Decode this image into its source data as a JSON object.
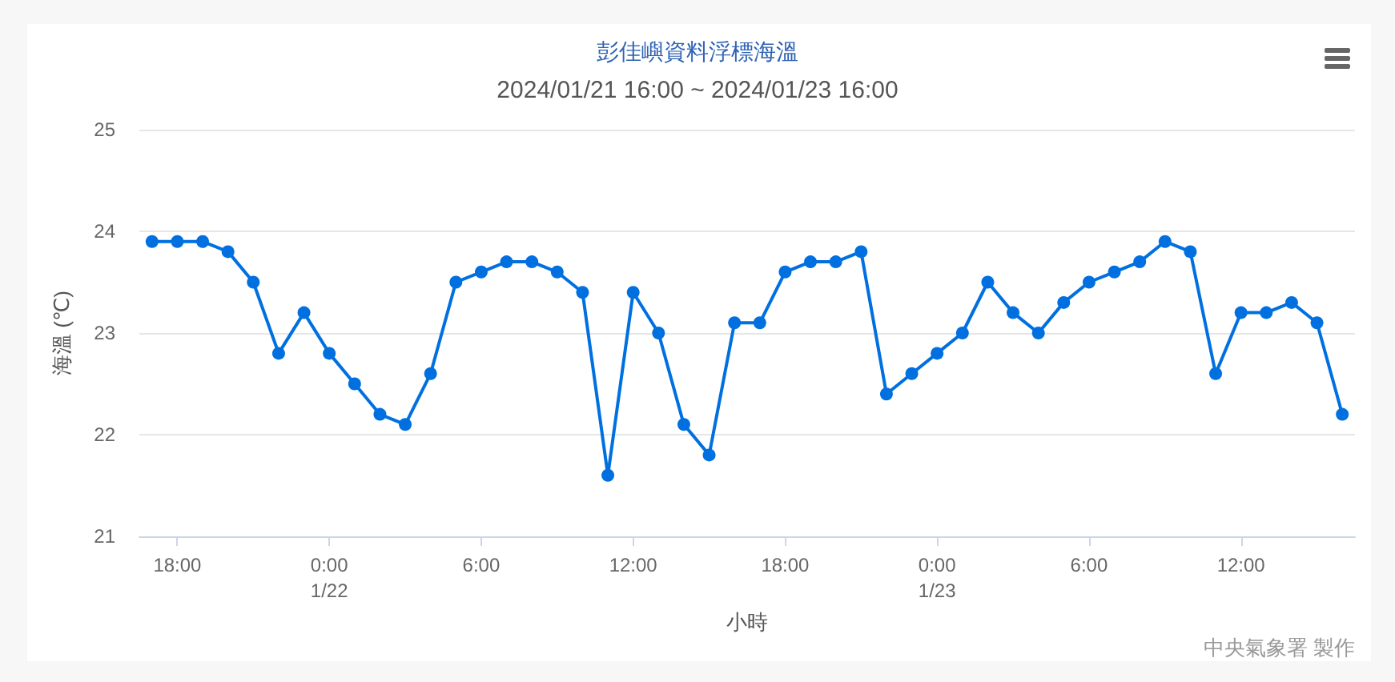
{
  "chart_data": {
    "type": "line",
    "title": "彭佳嶼資料浮標海溫",
    "subtitle": "2024/01/21 16:00 ~ 2024/01/23 16:00",
    "xlabel": "小時",
    "ylabel": "海溫 (℃)",
    "annotations": [
      "中央氣象署 製作"
    ],
    "x": [
      "2024-01-21T17:00",
      "2024-01-21T18:00",
      "2024-01-21T19:00",
      "2024-01-21T20:00",
      "2024-01-21T21:00",
      "2024-01-21T22:00",
      "2024-01-21T23:00",
      "2024-01-22T00:00",
      "2024-01-22T01:00",
      "2024-01-22T02:00",
      "2024-01-22T03:00",
      "2024-01-22T04:00",
      "2024-01-22T05:00",
      "2024-01-22T06:00",
      "2024-01-22T07:00",
      "2024-01-22T08:00",
      "2024-01-22T09:00",
      "2024-01-22T10:00",
      "2024-01-22T11:00",
      "2024-01-22T12:00",
      "2024-01-22T13:00",
      "2024-01-22T14:00",
      "2024-01-22T15:00",
      "2024-01-22T16:00",
      "2024-01-22T17:00",
      "2024-01-22T18:00",
      "2024-01-22T19:00",
      "2024-01-22T20:00",
      "2024-01-22T21:00",
      "2024-01-22T22:00",
      "2024-01-22T23:00",
      "2024-01-23T00:00",
      "2024-01-23T01:00",
      "2024-01-23T02:00",
      "2024-01-23T03:00",
      "2024-01-23T04:00",
      "2024-01-23T05:00",
      "2024-01-23T06:00",
      "2024-01-23T07:00",
      "2024-01-23T08:00",
      "2024-01-23T09:00",
      "2024-01-23T10:00",
      "2024-01-23T11:00",
      "2024-01-23T12:00",
      "2024-01-23T13:00",
      "2024-01-23T14:00",
      "2024-01-23T15:00",
      "2024-01-23T16:00"
    ],
    "series": [
      {
        "color": "#0070e0",
        "values": [
          23.9,
          23.9,
          23.9,
          23.8,
          23.5,
          22.8,
          23.2,
          22.8,
          22.5,
          22.2,
          22.1,
          22.6,
          23.5,
          23.6,
          23.7,
          23.7,
          23.6,
          23.4,
          21.6,
          23.4,
          23.0,
          22.1,
          21.8,
          23.1,
          23.1,
          23.6,
          23.7,
          23.7,
          23.8,
          22.4,
          22.6,
          22.8,
          23.0,
          23.5,
          23.2,
          23.0,
          23.3,
          23.5,
          23.6,
          23.7,
          23.9,
          23.8,
          22.6,
          23.2,
          23.2,
          23.3,
          23.1,
          22.2
        ]
      }
    ],
    "xlim": [
      "2024-01-21T16:30",
      "2024-01-23T16:30"
    ],
    "xticks": [
      {
        "value": "2024-01-21T18:00",
        "label": "18:00"
      },
      {
        "value": "2024-01-22T00:00",
        "label": "0:00\n1/22"
      },
      {
        "value": "2024-01-22T06:00",
        "label": "6:00"
      },
      {
        "value": "2024-01-22T12:00",
        "label": "12:00"
      },
      {
        "value": "2024-01-22T18:00",
        "label": "18:00"
      },
      {
        "value": "2024-01-23T00:00",
        "label": "0:00\n1/23"
      },
      {
        "value": "2024-01-23T06:00",
        "label": "6:00"
      },
      {
        "value": "2024-01-23T12:00",
        "label": "12:00"
      }
    ],
    "ylim": [
      21,
      25
    ],
    "yticks": [
      21,
      22,
      23,
      24,
      25
    ],
    "grid": "y",
    "marker": "circle",
    "line_style": "solid"
  }
}
